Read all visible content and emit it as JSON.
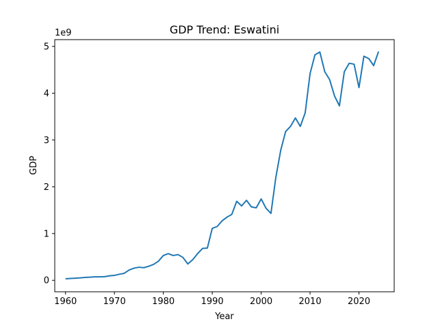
{
  "chart_data": {
    "type": "line",
    "title": "GDP Trend: Eswatini",
    "xlabel": "Year",
    "ylabel": "GDP",
    "y_multiplier_label": "1e9",
    "xlim": [
      1957.8,
      2027.2
    ],
    "ylim": [
      -0.245,
      5.145
    ],
    "x_ticks": [
      1960,
      1970,
      1980,
      1990,
      2000,
      2010,
      2020
    ],
    "y_ticks": [
      0,
      1,
      2,
      3,
      4,
      5
    ],
    "grid": false,
    "legend": "none",
    "line_color": "#1f77b4",
    "series": [
      {
        "x": [
          1960,
          1961,
          1962,
          1963,
          1964,
          1965,
          1966,
          1967,
          1968,
          1969,
          1970,
          1971,
          1972,
          1973,
          1974,
          1975,
          1976,
          1977,
          1978,
          1979,
          1980,
          1981,
          1982,
          1983,
          1984,
          1985,
          1986,
          1987,
          1988,
          1989,
          1990,
          1991,
          1992,
          1993,
          1994,
          1995,
          1996,
          1997,
          1998,
          1999,
          2000,
          2001,
          2002,
          2003,
          2004,
          2005,
          2006,
          2007,
          2008,
          2009,
          2010,
          2011,
          2012,
          2013,
          2014,
          2015,
          2016,
          2017,
          2018,
          2019,
          2020,
          2021,
          2022,
          2023,
          2024
        ],
        "values": [
          0.033,
          0.04,
          0.045,
          0.052,
          0.062,
          0.068,
          0.074,
          0.074,
          0.078,
          0.097,
          0.105,
          0.13,
          0.15,
          0.22,
          0.26,
          0.28,
          0.27,
          0.3,
          0.34,
          0.41,
          0.53,
          0.57,
          0.53,
          0.55,
          0.49,
          0.35,
          0.44,
          0.57,
          0.68,
          0.69,
          1.11,
          1.15,
          1.27,
          1.35,
          1.41,
          1.69,
          1.59,
          1.71,
          1.57,
          1.55,
          1.74,
          1.54,
          1.43,
          2.2,
          2.78,
          3.18,
          3.29,
          3.47,
          3.29,
          3.58,
          4.42,
          4.82,
          4.88,
          4.46,
          4.29,
          3.94,
          3.73,
          4.46,
          4.64,
          4.62,
          4.12,
          4.79,
          4.74,
          4.59,
          4.89
        ]
      }
    ]
  }
}
